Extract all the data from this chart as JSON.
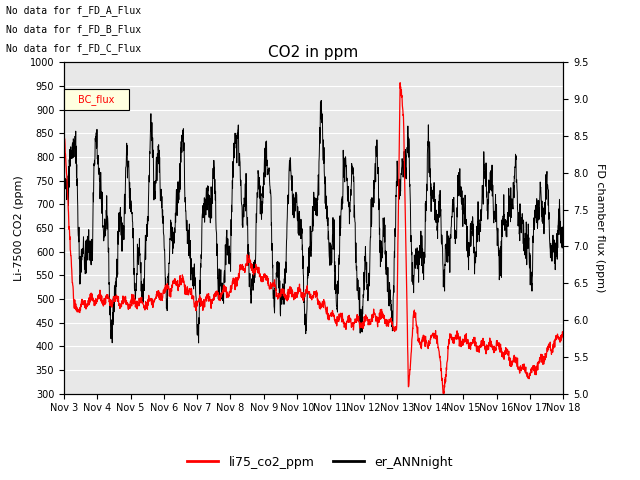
{
  "title": "CO2 in ppm",
  "ylabel_left": "Li-7500 CO2 (ppm)",
  "ylabel_right": "FD chamber flux (ppm)",
  "ylim_left": [
    300,
    1000
  ],
  "ylim_right": [
    5.0,
    9.5
  ],
  "yticks_left": [
    300,
    350,
    400,
    450,
    500,
    550,
    600,
    650,
    700,
    750,
    800,
    850,
    900,
    950,
    1000
  ],
  "yticks_right": [
    5.0,
    5.5,
    6.0,
    6.5,
    7.0,
    7.5,
    8.0,
    8.5,
    9.0,
    9.5
  ],
  "xtick_labels": [
    "Nov 3",
    "Nov 4",
    "Nov 5",
    "Nov 6",
    "Nov 7",
    "Nov 8",
    "Nov 9",
    "Nov 10",
    "Nov 11",
    "Nov 12",
    "Nov 13",
    "Nov 14",
    "Nov 15",
    "Nov 16",
    "Nov 17",
    "Nov 18"
  ],
  "legend_entries": [
    "li75_co2_ppm",
    "er_ANNnight"
  ],
  "legend_colors": [
    "#ff0000",
    "#000000"
  ],
  "top_text": [
    "No data for f_FD_A_Flux",
    "No data for f_FD_B_Flux",
    "No data for f_FD_C_Flux"
  ],
  "legend_box_label": "BC_flux",
  "line1_color": "#ff0000",
  "line2_color": "#000000",
  "background_color": "#ffffff",
  "plot_bg_color": "#e8e8e8",
  "grid_color": "#ffffff"
}
